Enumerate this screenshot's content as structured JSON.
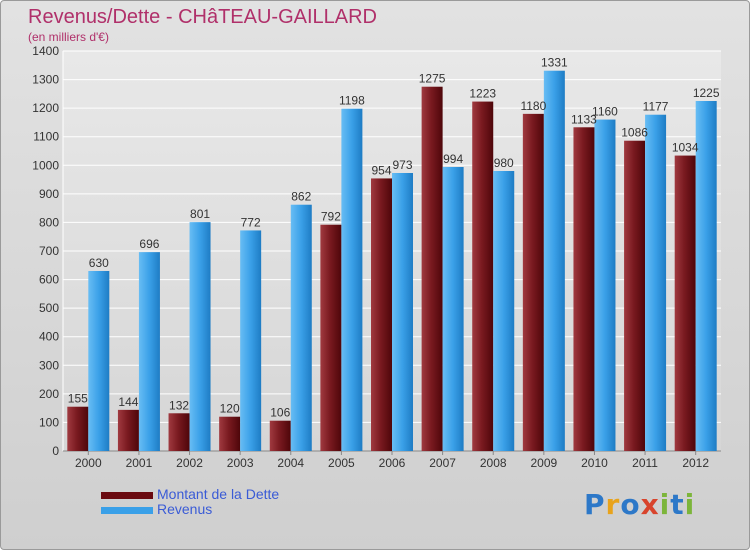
{
  "title": "Revenus/Dette - CHâTEAU-GAILLARD",
  "subtitle": "(en milliers d'€)",
  "logo": {
    "letters": [
      "P",
      "r",
      "o",
      "x",
      "i",
      "t",
      "i"
    ],
    "colors": [
      "#2d78c8",
      "#e8a31c",
      "#2d78c8",
      "#d8442c",
      "#7cb53a",
      "#2d78c8",
      "#7cb53a"
    ]
  },
  "legend": [
    {
      "label": "Montant de la Dette",
      "color": "#6a0a10"
    },
    {
      "label": "Revenus",
      "color": "#3aa0e8"
    }
  ],
  "chart_data": {
    "type": "bar",
    "categories": [
      "2000",
      "2001",
      "2002",
      "2003",
      "2004",
      "2005",
      "2006",
      "2007",
      "2008",
      "2009",
      "2010",
      "2011",
      "2012"
    ],
    "series": [
      {
        "name": "Montant de la Dette",
        "color": "#7a1a20",
        "values": [
          155,
          144,
          132,
          120,
          106,
          792,
          954,
          1275,
          1223,
          1180,
          1133,
          1086,
          1034
        ]
      },
      {
        "name": "Revenus",
        "color": "#3aa0e8",
        "values": [
          630,
          696,
          801,
          772,
          862,
          1198,
          973,
          994,
          980,
          1331,
          1160,
          1177,
          1225
        ]
      }
    ],
    "ylim": [
      0,
      1400
    ],
    "yticks": [
      0,
      100,
      200,
      300,
      400,
      500,
      600,
      700,
      800,
      900,
      1000,
      1100,
      1200,
      1300,
      1400
    ],
    "grid": true
  }
}
